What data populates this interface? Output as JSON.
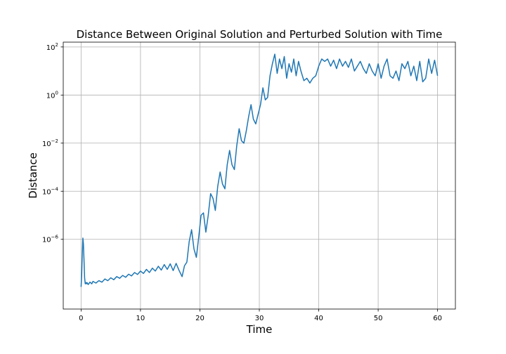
{
  "chart_data": {
    "type": "line",
    "title": "Distance Between Original Solution and Perturbed Solution with Time",
    "xlabel": "Time",
    "ylabel": "Distance",
    "xlim": [
      -3,
      63
    ],
    "ylim_log10": [
      -8.9,
      2.2
    ],
    "yscale": "log",
    "grid": true,
    "x_ticks": [
      0,
      10,
      20,
      30,
      40,
      50,
      60
    ],
    "x_tick_labels": [
      "0",
      "10",
      "20",
      "30",
      "40",
      "50",
      "60"
    ],
    "y_ticks_exp": [
      -6,
      -4,
      -2,
      0,
      2
    ],
    "y_tick_mantissa": "10",
    "y_tick_exponents": [
      "−6",
      "−4",
      "−2",
      "0",
      "2"
    ],
    "line_color": "#1f77b4",
    "series": [
      {
        "values_x": [
          0,
          0.1,
          0.2,
          0.3,
          0.4,
          0.5,
          0.6,
          0.7,
          0.8,
          0.9,
          1.0,
          1.2,
          1.5,
          1.8,
          2.0,
          2.5,
          3.0,
          3.5,
          4.0,
          4.5,
          5.0,
          5.5,
          6.0,
          6.5,
          7.0,
          7.5,
          8.0,
          8.5,
          9.0,
          9.5,
          10.0,
          10.5,
          11.0,
          11.5,
          12.0,
          12.5,
          13.0,
          13.5,
          14.0,
          14.5,
          15.0,
          15.5,
          16.0,
          16.5,
          17.0,
          17.4,
          17.8,
          18.2,
          18.6,
          19.0,
          19.4,
          19.8,
          20.2,
          20.6,
          21.0,
          21.4,
          21.8,
          22.2,
          22.6,
          23.0,
          23.4,
          23.8,
          24.2,
          24.6,
          25.0,
          25.4,
          25.8,
          26.2,
          26.6,
          27.0,
          27.4,
          27.8,
          28.2,
          28.6,
          29.0,
          29.4,
          29.8,
          30.2,
          30.6,
          31.0,
          31.4,
          31.8,
          32.2,
          32.6,
          33.0,
          33.4,
          33.8,
          34.2,
          34.6,
          35.0,
          35.4,
          35.8,
          36.2,
          36.6,
          37.0,
          37.5,
          38.0,
          38.5,
          39.0,
          39.5,
          40.0,
          40.5,
          41.0,
          41.5,
          42.0,
          42.5,
          43.0,
          43.5,
          44.0,
          44.5,
          45.0,
          45.5,
          46.0,
          46.5,
          47.0,
          47.5,
          48.0,
          48.5,
          49.0,
          49.5,
          50.0,
          50.5,
          51.0,
          51.5,
          52.0,
          52.5,
          53.0,
          53.5,
          54.0,
          54.5,
          55.0,
          55.5,
          56.0,
          56.5,
          57.0,
          57.5,
          58.0,
          58.5,
          59.0,
          59.5,
          60.0
        ],
        "values_log10_y": [
          -7.98,
          -7.5,
          -6.6,
          -5.95,
          -6.2,
          -6.9,
          -7.6,
          -7.85,
          -7.8,
          -7.85,
          -7.8,
          -7.88,
          -7.78,
          -7.85,
          -7.75,
          -7.82,
          -7.72,
          -7.78,
          -7.65,
          -7.72,
          -7.6,
          -7.68,
          -7.55,
          -7.62,
          -7.5,
          -7.58,
          -7.45,
          -7.52,
          -7.38,
          -7.46,
          -7.32,
          -7.42,
          -7.25,
          -7.38,
          -7.2,
          -7.32,
          -7.12,
          -7.28,
          -7.05,
          -7.25,
          -7.02,
          -7.3,
          -7.0,
          -7.3,
          -7.55,
          -7.1,
          -6.95,
          -6.1,
          -5.6,
          -6.4,
          -6.75,
          -5.9,
          -5.0,
          -4.9,
          -5.7,
          -5.0,
          -4.1,
          -4.3,
          -4.8,
          -3.8,
          -3.2,
          -3.7,
          -3.9,
          -2.9,
          -2.3,
          -2.9,
          -3.1,
          -2.1,
          -1.4,
          -1.9,
          -2.0,
          -1.5,
          -0.9,
          -0.4,
          -1.0,
          -1.2,
          -0.8,
          -0.4,
          0.3,
          -0.2,
          -0.1,
          0.8,
          1.3,
          1.7,
          0.9,
          1.5,
          1.1,
          1.6,
          0.7,
          1.3,
          0.95,
          1.5,
          0.8,
          1.4,
          1.0,
          0.6,
          0.7,
          0.5,
          0.7,
          0.8,
          1.2,
          1.5,
          1.4,
          1.5,
          1.2,
          1.45,
          1.1,
          1.5,
          1.2,
          1.4,
          1.15,
          1.5,
          1.0,
          1.2,
          1.4,
          1.1,
          0.9,
          1.3,
          1.0,
          0.8,
          1.3,
          0.7,
          1.2,
          1.5,
          0.8,
          0.7,
          1.0,
          0.6,
          1.3,
          1.1,
          1.4,
          0.8,
          1.2,
          0.6,
          1.4,
          0.55,
          0.7,
          1.5,
          0.9,
          1.45,
          0.8
        ]
      }
    ]
  }
}
